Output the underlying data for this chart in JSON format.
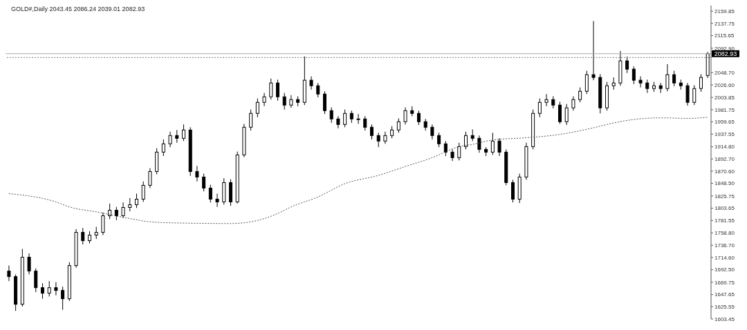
{
  "chart_data": {
    "type": "candlestick",
    "title": "GOLD#,Daily  2043.45 2086.24 2039.01 2082.93",
    "color": "#000000",
    "categories": [
      null,
      null,
      null,
      null,
      null,
      null,
      null,
      null,
      null,
      null,
      null,
      null,
      null,
      null,
      null,
      null,
      null,
      null,
      null,
      null,
      null,
      null,
      null,
      null,
      null,
      null,
      null,
      null,
      null,
      null,
      null,
      null,
      null,
      null,
      null,
      null,
      null,
      null,
      null,
      null,
      null,
      null,
      null,
      null,
      null,
      null,
      null,
      null,
      null,
      null,
      null,
      null,
      null,
      null,
      null,
      null,
      null,
      null,
      null,
      null,
      null,
      null,
      null,
      null,
      null,
      null,
      null,
      null,
      null,
      null,
      null,
      null,
      null,
      null,
      null,
      null,
      null,
      null,
      null,
      null,
      null,
      null,
      null,
      null,
      null,
      null,
      null,
      null,
      null,
      null,
      null,
      null,
      null,
      null,
      null,
      null,
      null,
      null,
      null,
      null,
      null,
      null,
      null,
      null,
      null
    ],
    "ohlc": [
      [
        1690,
        1700,
        1672,
        1680
      ],
      [
        1680,
        1684,
        1618,
        1630
      ],
      [
        1630,
        1730,
        1626,
        1715
      ],
      [
        1715,
        1722,
        1684,
        1690
      ],
      [
        1690,
        1695,
        1652,
        1660
      ],
      [
        1660,
        1668,
        1640,
        1650
      ],
      [
        1650,
        1672,
        1644,
        1660
      ],
      [
        1660,
        1670,
        1646,
        1655
      ],
      [
        1655,
        1662,
        1620,
        1640
      ],
      [
        1640,
        1706,
        1636,
        1700
      ],
      [
        1700,
        1766,
        1696,
        1760
      ],
      [
        1760,
        1768,
        1738,
        1745
      ],
      [
        1745,
        1762,
        1740,
        1755
      ],
      [
        1755,
        1770,
        1748,
        1760
      ],
      [
        1760,
        1796,
        1755,
        1790
      ],
      [
        1790,
        1812,
        1784,
        1800
      ],
      [
        1800,
        1806,
        1782,
        1790
      ],
      [
        1790,
        1814,
        1786,
        1805
      ],
      [
        1805,
        1822,
        1798,
        1810
      ],
      [
        1810,
        1830,
        1804,
        1820
      ],
      [
        1820,
        1852,
        1815,
        1845
      ],
      [
        1845,
        1876,
        1840,
        1870
      ],
      [
        1870,
        1912,
        1865,
        1905
      ],
      [
        1905,
        1928,
        1898,
        1920
      ],
      [
        1920,
        1942,
        1914,
        1935
      ],
      [
        1935,
        1945,
        1922,
        1930
      ],
      [
        1930,
        1955,
        1925,
        1945
      ],
      [
        1945,
        1950,
        1862,
        1870
      ],
      [
        1870,
        1880,
        1852,
        1860
      ],
      [
        1860,
        1866,
        1834,
        1840
      ],
      [
        1840,
        1846,
        1814,
        1820
      ],
      [
        1820,
        1830,
        1806,
        1815
      ],
      [
        1815,
        1858,
        1810,
        1850
      ],
      [
        1850,
        1856,
        1808,
        1815
      ],
      [
        1815,
        1906,
        1812,
        1900
      ],
      [
        1900,
        1956,
        1896,
        1950
      ],
      [
        1950,
        1982,
        1944,
        1975
      ],
      [
        1975,
        2002,
        1968,
        1995
      ],
      [
        1995,
        2012,
        1988,
        2005
      ],
      [
        2005,
        2038,
        2000,
        2030
      ],
      [
        2030,
        2036,
        1998,
        2005
      ],
      [
        2005,
        2012,
        1982,
        1990
      ],
      [
        1990,
        2008,
        1985,
        2000
      ],
      [
        2000,
        2006,
        1988,
        1995
      ],
      [
        1995,
        2078,
        1990,
        2035
      ],
      [
        2035,
        2042,
        2018,
        2025
      ],
      [
        2025,
        2030,
        2004,
        2010
      ],
      [
        2010,
        2015,
        1974,
        1980
      ],
      [
        1980,
        1986,
        1958,
        1965
      ],
      [
        1965,
        1970,
        1948,
        1955
      ],
      [
        1955,
        1982,
        1950,
        1975
      ],
      [
        1975,
        1980,
        1958,
        1965
      ],
      [
        1965,
        1974,
        1956,
        1965
      ],
      [
        1965,
        1970,
        1944,
        1950
      ],
      [
        1950,
        1955,
        1928,
        1935
      ],
      [
        1935,
        1940,
        1914,
        1925
      ],
      [
        1925,
        1942,
        1920,
        1935
      ],
      [
        1935,
        1952,
        1930,
        1945
      ],
      [
        1945,
        1966,
        1940,
        1960
      ],
      [
        1960,
        1986,
        1955,
        1980
      ],
      [
        1980,
        1988,
        1970,
        1975
      ],
      [
        1975,
        1980,
        1954,
        1960
      ],
      [
        1960,
        1965,
        1944,
        1950
      ],
      [
        1950,
        1955,
        1928,
        1935
      ],
      [
        1935,
        1940,
        1914,
        1920
      ],
      [
        1920,
        1925,
        1898,
        1905
      ],
      [
        1905,
        1910,
        1889,
        1895
      ],
      [
        1895,
        1922,
        1890,
        1915
      ],
      [
        1915,
        1942,
        1910,
        1935
      ],
      [
        1935,
        1946,
        1925,
        1930
      ],
      [
        1930,
        1935,
        1904,
        1910
      ],
      [
        1910,
        1914,
        1898,
        1905
      ],
      [
        1905,
        1940,
        1900,
        1925
      ],
      [
        1925,
        1930,
        1898,
        1905
      ],
      [
        1905,
        1910,
        1845,
        1850
      ],
      [
        1850,
        1855,
        1814,
        1820
      ],
      [
        1820,
        1866,
        1813,
        1860
      ],
      [
        1860,
        1922,
        1855,
        1915
      ],
      [
        1915,
        1982,
        1910,
        1975
      ],
      [
        1975,
        2002,
        1968,
        1995
      ],
      [
        1995,
        2010,
        1988,
        2000
      ],
      [
        2000,
        2006,
        1984,
        1990
      ],
      [
        1990,
        1996,
        1956,
        1960
      ],
      [
        1960,
        1992,
        1954,
        1985
      ],
      [
        1985,
        2006,
        1980,
        2000
      ],
      [
        2000,
        2022,
        1995,
        2015
      ],
      [
        2015,
        2052,
        2010,
        2045
      ],
      [
        2045,
        2142,
        2035,
        2040
      ],
      [
        2040,
        2046,
        1975,
        1985
      ],
      [
        1985,
        2032,
        1980,
        2025
      ],
      [
        2025,
        2040,
        2018,
        2030
      ],
      [
        2030,
        2088,
        2025,
        2070
      ],
      [
        2070,
        2078,
        2048,
        2055
      ],
      [
        2055,
        2060,
        2028,
        2035
      ],
      [
        2035,
        2042,
        2022,
        2030
      ],
      [
        2030,
        2036,
        2012,
        2020
      ],
      [
        2020,
        2032,
        2014,
        2025
      ],
      [
        2025,
        2030,
        2012,
        2020
      ],
      [
        2020,
        2064,
        2015,
        2045
      ],
      [
        2045,
        2052,
        2024,
        2030
      ],
      [
        2030,
        2036,
        2018,
        2025
      ],
      [
        2025,
        2030,
        1989,
        1995
      ],
      [
        1995,
        2026,
        1990,
        2020
      ],
      [
        2020,
        2046,
        2014,
        2040
      ],
      [
        2043.45,
        2086.24,
        2039.01,
        2082.93
      ]
    ],
    "series": [
      {
        "type": "line",
        "color": "#555555",
        "line_style": "dotted",
        "values": [
          1830,
          null,
          null,
          null,
          null,
          null,
          null,
          1815,
          null,
          1806,
          null,
          null,
          null,
          1797,
          null,
          null,
          null,
          null,
          1785,
          null,
          null,
          1779,
          null,
          null,
          null,
          1777,
          null,
          null,
          null,
          null,
          null,
          null,
          null,
          1776,
          null,
          null,
          1779,
          null,
          null,
          null,
          1794,
          null,
          1806,
          null,
          null,
          null,
          1824,
          null,
          null,
          null,
          1848,
          null,
          null,
          null,
          null,
          1863,
          null,
          null,
          null,
          1879,
          null,
          null,
          null,
          1895,
          null,
          null,
          null,
          1915,
          null,
          1919,
          null,
          null,
          1927,
          null,
          null,
          null,
          null,
          1931,
          null,
          null,
          null,
          null,
          1937,
          null,
          null,
          null,
          null,
          1949,
          null,
          1955,
          null,
          null,
          null,
          1964,
          null,
          null,
          null,
          1967,
          null,
          null,
          null,
          1966,
          null,
          null,
          1968
        ]
      }
    ],
    "ylim": [
      1603.45,
      2170
    ],
    "yticks": [
      2159.85,
      2137.75,
      2115.65,
      {
        "value": 2092.9,
        "label": "2092.90"
      },
      {
        "value": 2048.7,
        "label": "2048.70"
      },
      {
        "value": 2026.6,
        "label": "2026.60"
      },
      2003.85,
      1981.75,
      1959.65,
      1937.55,
      {
        "value": 1914.8,
        "label": "1914.80"
      },
      {
        "value": 1892.7,
        "label": "1892.70"
      },
      {
        "value": 1870.6,
        "label": "1870.60"
      },
      {
        "value": 1848.5,
        "label": "1848.50"
      },
      1825.75,
      1803.65,
      1781.55,
      {
        "value": 1758.8,
        "label": "1758.80"
      },
      {
        "value": 1736.7,
        "label": "1736.70"
      },
      {
        "value": 1714.6,
        "label": "1714.60"
      },
      {
        "value": 1692.5,
        "label": "1692.50"
      },
      1669.75,
      1647.65,
      1625.55,
      1603.45
    ],
    "ref_lines": [
      {
        "axis": "y",
        "value": 2082.93,
        "label": "2082.93",
        "color": "#aaaaaa",
        "line_style": "solid"
      },
      {
        "axis": "y",
        "value": 2076,
        "color": "#777777",
        "line_style": "dotted"
      }
    ]
  }
}
